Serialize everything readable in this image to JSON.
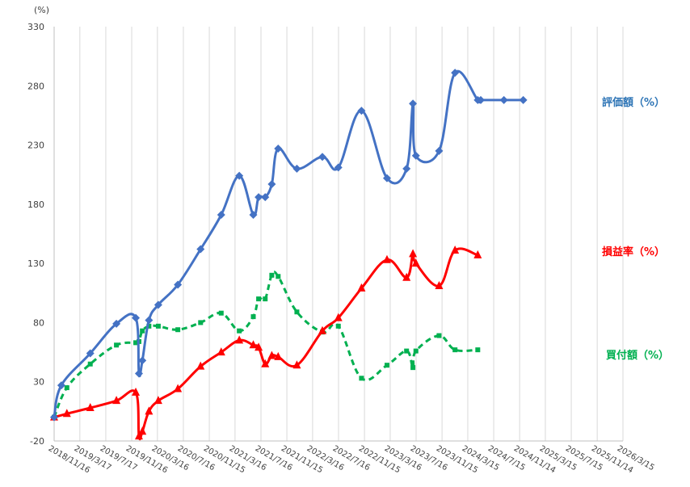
{
  "chart_data": {
    "type": "line",
    "y_unit_label": "(%)",
    "ylim": [
      -20,
      330
    ],
    "y_ticks": [
      -20,
      30,
      80,
      130,
      180,
      230,
      280,
      330
    ],
    "x_ticks": [
      "2018/11/16",
      "2019/3/17",
      "2019/7/17",
      "2019/11/16",
      "2020/3/16",
      "2020/7/16",
      "2020/11/15",
      "2021/3/16",
      "2021/7/16",
      "2021/11/15",
      "2022/3/16",
      "2022/7/16",
      "2022/11/15",
      "2023/3/16",
      "2023/7/16",
      "2023/11/15",
      "2024/3/15",
      "2024/7/15",
      "2024/11/14",
      "2025/3/15",
      "2025/7/15",
      "2025/11/14",
      "2026/3/15"
    ],
    "grid": "vertical",
    "colors": {
      "評価額": "#4472c4",
      "損益率": "#ff0000",
      "買付額": "#00b050"
    },
    "series": [
      {
        "name": "評価額（%）",
        "x": [
          "2018/11/16",
          "2018/12/20",
          "2019/5/5",
          "2019/9/5",
          "2019/12/5",
          "2019/12/20",
          "2020/1/5",
          "2020/2/5",
          "2020/3/20",
          "2020/6/20",
          "2020/10/5",
          "2021/1/10",
          "2021/4/5",
          "2021/6/10",
          "2021/7/5",
          "2021/8/5",
          "2021/9/5",
          "2021/10/5",
          "2022/1/1",
          "2022/5/1",
          "2022/7/15",
          "2022/11/1",
          "2023/3/1",
          "2023/6/1",
          "2023/7/1",
          "2023/7/15",
          "2023/11/1",
          "2024/1/15",
          "2024/5/1",
          "2024/5/15",
          "2024/9/1",
          "2024/12/1"
        ],
        "values": [
          0,
          27,
          54,
          79,
          84,
          37,
          48,
          82,
          95,
          112,
          142,
          171,
          204,
          171,
          186,
          186,
          197,
          227,
          210,
          220,
          211,
          259,
          202,
          210,
          265,
          221,
          225,
          291,
          268,
          268,
          268,
          268
        ]
      },
      {
        "name": "損益率（%）",
        "x": [
          "2018/11/16",
          "2019/1/15",
          "2019/5/5",
          "2019/9/5",
          "2019/12/5",
          "2019/12/20",
          "2020/1/5",
          "2020/2/5",
          "2020/3/20",
          "2020/6/20",
          "2020/10/5",
          "2021/1/10",
          "2021/4/5",
          "2021/6/10",
          "2021/7/5",
          "2021/8/5",
          "2021/9/5",
          "2021/10/5",
          "2022/1/1",
          "2022/5/1",
          "2022/7/15",
          "2022/11/1",
          "2023/3/1",
          "2023/6/1",
          "2023/7/1",
          "2023/7/15",
          "2023/11/1",
          "2024/1/15",
          "2024/5/1"
        ],
        "values": [
          0,
          3,
          8,
          14,
          21,
          -16,
          -12,
          5,
          14,
          24,
          43,
          55,
          65,
          61,
          59,
          45,
          52,
          51,
          44,
          73,
          84,
          109,
          133,
          118,
          138,
          130,
          111,
          141,
          137
        ]
      },
      {
        "name": "買付額（%）",
        "x": [
          "2018/11/16",
          "2019/1/15",
          "2019/5/5",
          "2019/9/5",
          "2019/12/5",
          "2019/12/20",
          "2020/1/5",
          "2020/2/5",
          "2020/3/20",
          "2020/6/20",
          "2020/10/5",
          "2021/1/10",
          "2021/4/5",
          "2021/6/10",
          "2021/7/5",
          "2021/8/5",
          "2021/9/5",
          "2021/10/5",
          "2022/1/1",
          "2022/5/1",
          "2022/7/15",
          "2022/11/1",
          "2023/3/1",
          "2023/6/1",
          "2023/7/1",
          "2023/7/15",
          "2023/11/1",
          "2024/1/15",
          "2024/5/1"
        ],
        "values": [
          0,
          25,
          45,
          61,
          63,
          64,
          73,
          77,
          77,
          74,
          80,
          88,
          73,
          85,
          100,
          100,
          120,
          119,
          89,
          72,
          77,
          33,
          44,
          56,
          42,
          56,
          69,
          57,
          57
        ]
      }
    ],
    "labels": {
      "hyouka": "評価額（%）",
      "soneki": "損益率（%）",
      "kaitsuke": "買付額（%）"
    }
  }
}
